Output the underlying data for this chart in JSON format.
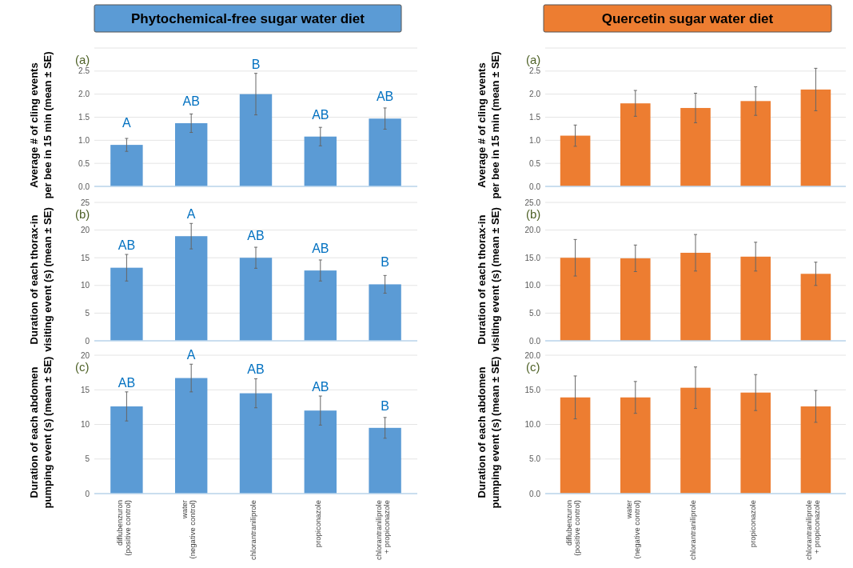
{
  "chart_data": [
    {
      "type": "bar",
      "title": "Phytochemical-free sugar water diet",
      "ylabel": "Average # of cling events\nper bee in 15 min (mean ± SE)",
      "categories": [
        "diflubenzuron\n(positive control)",
        "water\n(negative control)",
        "chlorantraniliprole",
        "propiconazole",
        "chlorantraniliprole\n+ propiconazole"
      ],
      "color": "#5b9bd5",
      "values": [
        0.9,
        1.37,
        2.0,
        1.08,
        1.47
      ],
      "errors": [
        0.14,
        0.2,
        0.45,
        0.2,
        0.23
      ],
      "ylim": [
        0,
        3
      ],
      "yticks": [
        {
          "value": 0,
          "label": "0.0"
        },
        {
          "value": 0.5,
          "label": "0.5"
        },
        {
          "value": 1,
          "label": "1.0"
        },
        {
          "value": 1.5,
          "label": "1.5"
        },
        {
          "value": 2,
          "label": "2.0"
        },
        {
          "value": 2.5,
          "label": "2.5"
        },
        {
          "value": 3,
          "label": null
        }
      ],
      "grid": "y",
      "tick_labels": "y",
      "annotations": [
        "(a)",
        {
          "text": "A",
          "x": "diflubenzuron\n(positive control)",
          "y": 0.9
        },
        {
          "text": "AB",
          "x": "water\n(negative control)",
          "y": 1.37
        },
        {
          "text": "B",
          "x": "chlorantraniliprole",
          "y": 2.0
        },
        {
          "text": "AB",
          "x": "propiconazole",
          "y": 1.08
        },
        {
          "text": "AB",
          "x": "chlorantraniliprole\n+ propiconazole",
          "y": 1.47
        }
      ]
    },
    {
      "type": "bar",
      "title": "Quercetin sugar water diet",
      "ylabel": "Average # of cling events\nper bee in 15 min (mean ± SE)",
      "categories": [
        null,
        null,
        null,
        null,
        null
      ],
      "color": "#ed7d31",
      "values": [
        1.1,
        1.8,
        1.7,
        1.85,
        2.1
      ],
      "errors": [
        0.23,
        0.28,
        0.32,
        0.31,
        0.46
      ],
      "ylim": [
        0,
        3
      ],
      "yticks": [
        {
          "value": 0,
          "label": "0.0"
        },
        {
          "value": 0.5,
          "label": "0.5"
        },
        {
          "value": 1,
          "label": "1.0"
        },
        {
          "value": 1.5,
          "label": "1.5"
        },
        {
          "value": 2,
          "label": "2.0"
        },
        {
          "value": 2.5,
          "label": "2.5"
        },
        {
          "value": 3,
          "label": null
        }
      ],
      "grid": "y",
      "tick_labels": "y",
      "annotations": [
        "(a)"
      ]
    },
    {
      "type": "bar",
      "ylabel": "Duration of each thorax-in\nvisiting event (s) (mean ± SE)",
      "categories": [
        "diflubenzuron\n(positive control)",
        "water\n(negative control)",
        "chlorantraniliprole",
        "propiconazole",
        "chlorantraniliprole\n+ propiconazole"
      ],
      "color": "#5b9bd5",
      "values": [
        13.2,
        18.9,
        15.0,
        12.7,
        10.2
      ],
      "errors": [
        2.4,
        2.3,
        1.9,
        1.9,
        1.6
      ],
      "ylim": [
        0,
        25
      ],
      "yticks": [
        0,
        5,
        10,
        15,
        20,
        25
      ],
      "grid": "y",
      "tick_labels": "y",
      "annotations": [
        "(b)",
        {
          "text": "AB",
          "x": "diflubenzuron\n(positive control)",
          "y": 13.2
        },
        {
          "text": "A",
          "x": "water\n(negative control)",
          "y": 18.9
        },
        {
          "text": "AB",
          "x": "chlorantraniliprole",
          "y": 15.0
        },
        {
          "text": "AB",
          "x": "propiconazole",
          "y": 12.7
        },
        {
          "text": "B",
          "x": "chlorantraniliprole\n+ propiconazole",
          "y": 10.2
        }
      ]
    },
    {
      "type": "bar",
      "ylabel": "Duration of each thorax-in\nvisiting event (s) (mean ± SE)",
      "categories": [
        null,
        null,
        null,
        null,
        null
      ],
      "color": "#ed7d31",
      "values": [
        15.0,
        14.9,
        15.9,
        15.2,
        12.1
      ],
      "errors": [
        3.3,
        2.4,
        3.3,
        2.6,
        2.1
      ],
      "ylim": [
        0,
        25
      ],
      "yticks": [
        {
          "value": 0,
          "label": "0.0"
        },
        {
          "value": 5,
          "label": "5.0"
        },
        {
          "value": 10,
          "label": "10.0"
        },
        {
          "value": 15,
          "label": "15.0"
        },
        {
          "value": 20,
          "label": "20.0"
        },
        {
          "value": 25,
          "label": "25.0"
        }
      ],
      "grid": "y",
      "tick_labels": "y",
      "annotations": [
        "(b)"
      ]
    },
    {
      "type": "bar",
      "ylabel": "Duration of each abdomen\npumping event (s) (mean ± SE)",
      "categories": [
        "diflubenzuron\n(positive control)",
        "water\n(negative control)",
        "chlorantraniliprole",
        "propiconazole",
        "chlorantraniliprole\n+ propiconazole"
      ],
      "color": "#5b9bd5",
      "values": [
        12.6,
        16.7,
        14.5,
        12.0,
        9.5
      ],
      "errors": [
        2.1,
        2.0,
        2.1,
        2.1,
        1.5
      ],
      "ylim": [
        0,
        20
      ],
      "yticks": [
        0,
        5,
        10,
        15,
        20
      ],
      "grid": "y",
      "annotations": [
        "(c)",
        {
          "text": "AB",
          "x": "diflubenzuron\n(positive control)",
          "y": 12.6
        },
        {
          "text": "A",
          "x": "water\n(negative control)",
          "y": 16.7
        },
        {
          "text": "AB",
          "x": "chlorantraniliprole",
          "y": 14.5
        },
        {
          "text": "AB",
          "x": "propiconazole",
          "y": 12.0
        },
        {
          "text": "B",
          "x": "chlorantraniliprole\n+ propiconazole",
          "y": 9.5
        }
      ]
    },
    {
      "type": "bar",
      "ylabel": "Duration of each abdomen\npumping event (s) (mean ± SE)",
      "categories": [
        "diflubenzuron\n(positive control)",
        "water\n(negative control)",
        "chlorantraniliprole",
        "propiconazole",
        "chlorantraniliprole\n+ propiconazole"
      ],
      "color": "#ed7d31",
      "values": [
        13.9,
        13.9,
        15.3,
        14.6,
        12.6
      ],
      "errors": [
        3.1,
        2.3,
        3.0,
        2.6,
        2.3
      ],
      "ylim": [
        0,
        20
      ],
      "yticks": [
        {
          "value": 0,
          "label": "0.0"
        },
        {
          "value": 5,
          "label": "5.0"
        },
        {
          "value": 10,
          "label": "10.0"
        },
        {
          "value": 15,
          "label": "15.0"
        },
        {
          "value": 20,
          "label": "20.0"
        }
      ],
      "grid": "y",
      "annotations": [
        "(c)"
      ]
    }
  ]
}
